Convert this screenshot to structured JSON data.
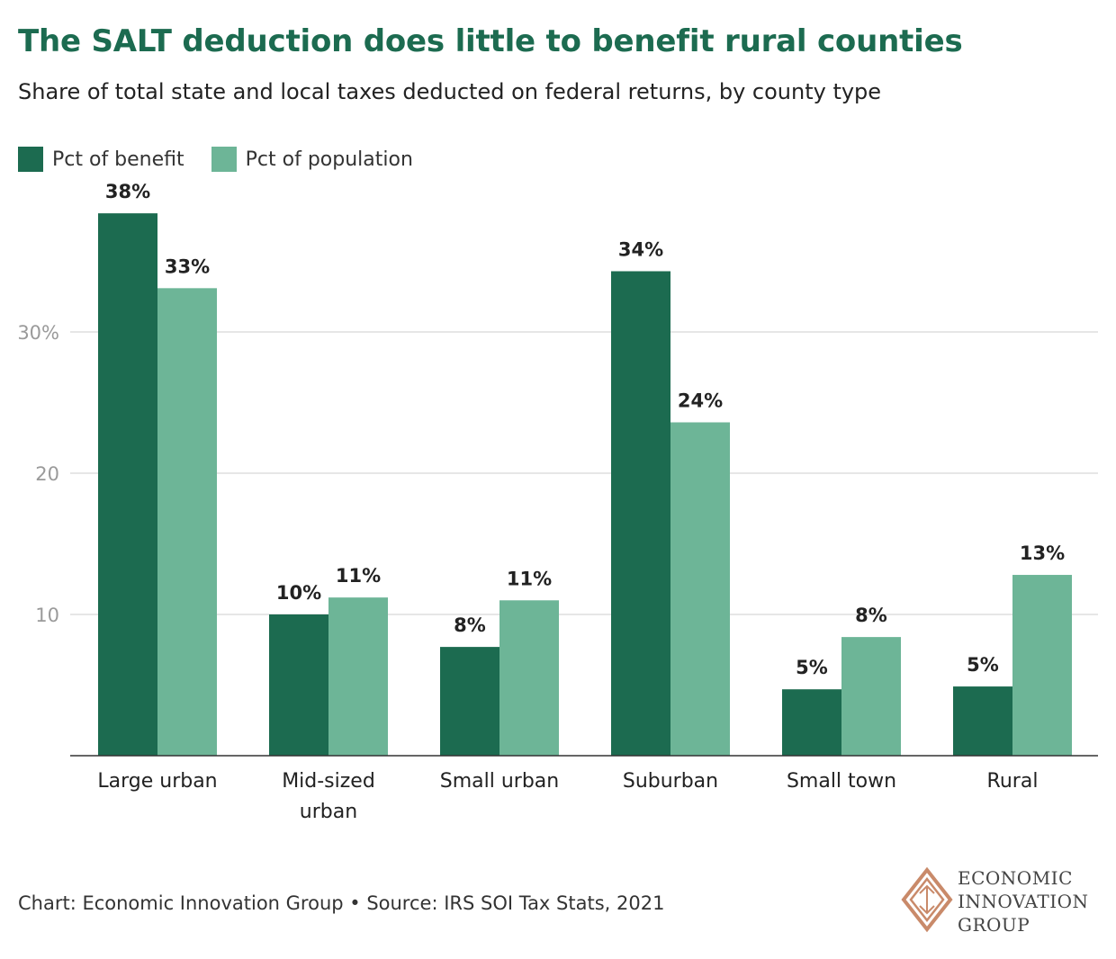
{
  "header": {
    "title": "The SALT deduction does little to benefit rural counties",
    "subtitle": "Share of total state and local taxes deducted on federal returns, by county type"
  },
  "legend": {
    "items": [
      {
        "label": "Pct of benefit",
        "color": "#1c6b50"
      },
      {
        "label": "Pct of population",
        "color": "#6db597"
      }
    ]
  },
  "chart_data": {
    "type": "bar",
    "categories": [
      "Large urban",
      "Mid-sized urban",
      "Small urban",
      "Suburban",
      "Small town",
      "Rural"
    ],
    "category_lines": [
      [
        "Large urban"
      ],
      [
        "Mid-sized",
        "urban"
      ],
      [
        "Small urban"
      ],
      [
        "Suburban"
      ],
      [
        "Small town"
      ],
      [
        "Rural"
      ]
    ],
    "series": [
      {
        "name": "Pct of benefit",
        "color": "#1c6b50",
        "values": [
          38.4,
          10.0,
          7.7,
          34.3,
          4.7,
          4.9
        ],
        "labels": [
          "38%",
          "10%",
          "8%",
          "34%",
          "5%",
          "5%"
        ]
      },
      {
        "name": "Pct of population",
        "color": "#6db597",
        "values": [
          33.1,
          11.2,
          11.0,
          23.6,
          8.4,
          12.8
        ],
        "labels": [
          "33%",
          "11%",
          "11%",
          "24%",
          "8%",
          "13%"
        ]
      }
    ],
    "yticks": [
      10,
      20,
      30
    ],
    "ytick_labels": [
      "10",
      "20",
      "30%"
    ],
    "ylim": [
      0,
      40
    ],
    "grid": true,
    "legend_position": "top-left"
  },
  "footer": {
    "credit": "Chart: Economic Innovation Group • Source: IRS SOI Tax Stats, 2021"
  },
  "logo": {
    "lines": [
      "ECONOMIC",
      "INNOVATION",
      "GROUP"
    ],
    "color": "#c98a6a"
  }
}
